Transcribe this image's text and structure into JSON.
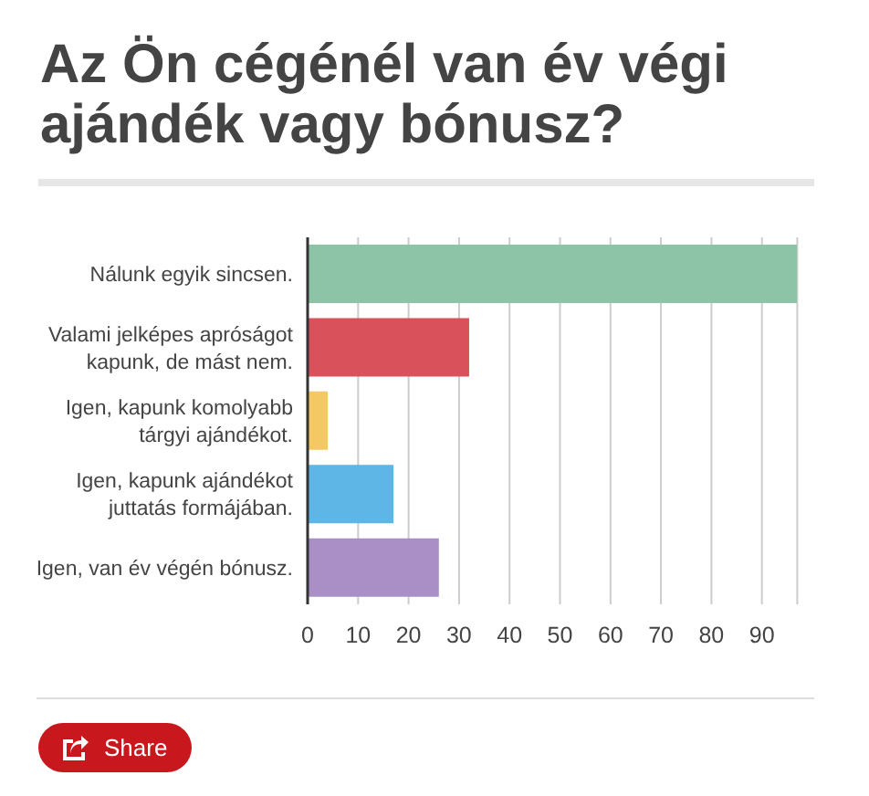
{
  "chart_data": {
    "type": "bar",
    "orientation": "horizontal",
    "title": "Az Ön cégénél van év végi ajándék vagy bónusz?",
    "categories": [
      "Nálunk egyik sincsen.",
      "Valami jelképes apróságot kapunk, de mást nem.",
      "Igen, kapunk komolyabb tárgyi ajándékot.",
      "Igen, kapunk ajándékot juttatás formájában.",
      "Igen, van év végén bónusz."
    ],
    "values": [
      97,
      32,
      4,
      17,
      26
    ],
    "colors": [
      "#8dc4a8",
      "#d9515a",
      "#f4c964",
      "#5db6e5",
      "#a98fc6"
    ],
    "xlim": [
      0,
      97
    ],
    "xticks": [
      0,
      10,
      20,
      30,
      40,
      50,
      60,
      70,
      80,
      90
    ],
    "grid": "x",
    "annotations": [
      "Share"
    ]
  }
}
